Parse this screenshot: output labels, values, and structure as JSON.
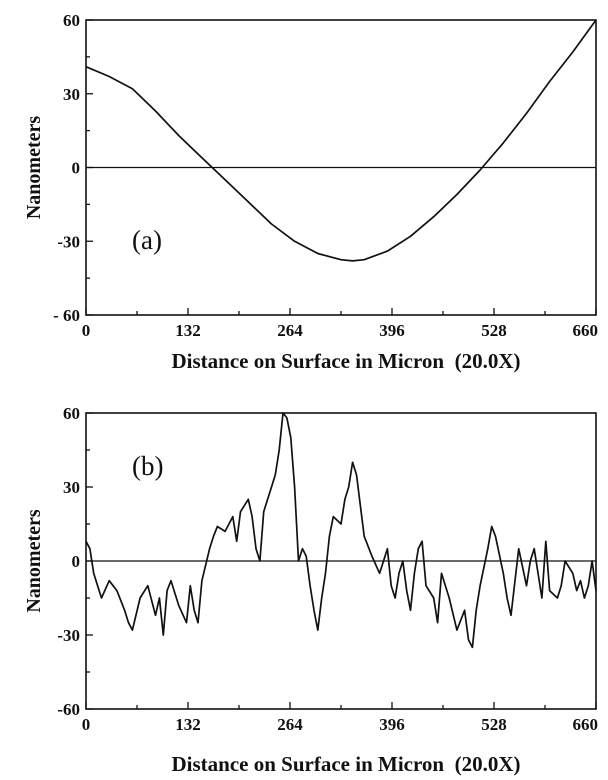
{
  "chart_data": [
    {
      "type": "line",
      "panel_label": "(a)",
      "xlabel": "Distance on Surface in Micron  (20.0X)",
      "ylabel": "Nanometers",
      "xlim": [
        0,
        660
      ],
      "ylim": [
        -60,
        60
      ],
      "x_ticks": [
        "0",
        "132",
        "264",
        "396",
        "528",
        "660"
      ],
      "y_ticks": [
        "60",
        "30",
        "0",
        "-30",
        "- 60"
      ],
      "zero_line": true,
      "series": [
        {
          "x": [
            0,
            30,
            60,
            90,
            120,
            150,
            180,
            210,
            240,
            270,
            300,
            330,
            345,
            360,
            390,
            420,
            450,
            480,
            510,
            540,
            570,
            600,
            630,
            660
          ],
          "values": [
            41,
            37,
            32,
            23,
            13,
            4,
            -5,
            -14,
            -23,
            -30,
            -35,
            -37.5,
            -38,
            -37.5,
            -34,
            -28,
            -20,
            -11,
            -1,
            10,
            22,
            35,
            47,
            60
          ]
        }
      ]
    },
    {
      "type": "line",
      "panel_label": "(b)",
      "xlabel": "Distance on Surface in Micron  (20.0X)",
      "ylabel": "Nanometers",
      "xlim": [
        0,
        660
      ],
      "ylim": [
        -60,
        60
      ],
      "x_ticks": [
        "0",
        "132",
        "264",
        "396",
        "528",
        "660"
      ],
      "y_ticks": [
        "60",
        "30",
        "0",
        "-30",
        "-60"
      ],
      "zero_line": true,
      "series": [
        {
          "x": [
            0,
            5,
            10,
            15,
            20,
            30,
            40,
            50,
            55,
            60,
            70,
            80,
            90,
            95,
            100,
            105,
            110,
            120,
            130,
            135,
            140,
            145,
            150,
            160,
            165,
            170,
            180,
            190,
            195,
            200,
            210,
            215,
            220,
            225,
            230,
            235,
            240,
            245,
            250,
            255,
            260,
            265,
            270,
            275,
            280,
            285,
            290,
            295,
            300,
            305,
            310,
            315,
            320,
            330,
            335,
            340,
            345,
            350,
            360,
            370,
            380,
            390,
            395,
            400,
            405,
            410,
            415,
            420,
            425,
            430,
            435,
            440,
            450,
            455,
            460,
            470,
            480,
            490,
            495,
            500,
            505,
            510,
            520,
            525,
            530,
            540,
            545,
            550,
            560,
            570,
            575,
            580,
            590,
            595,
            600,
            610,
            615,
            620,
            630,
            635,
            640,
            645,
            650,
            655,
            660
          ],
          "values": [
            8,
            5,
            -5,
            -10,
            -15,
            -8,
            -12,
            -20,
            -25,
            -28,
            -15,
            -10,
            -22,
            -15,
            -30,
            -12,
            -8,
            -18,
            -25,
            -10,
            -20,
            -25,
            -8,
            5,
            10,
            14,
            12,
            18,
            8,
            20,
            25,
            18,
            5,
            0,
            20,
            25,
            30,
            35,
            45,
            60,
            58,
            50,
            30,
            0,
            5,
            2,
            -10,
            -20,
            -28,
            -15,
            -5,
            10,
            18,
            15,
            25,
            30,
            40,
            35,
            10,
            2,
            -5,
            5,
            -10,
            -15,
            -5,
            0,
            -12,
            -20,
            -5,
            5,
            8,
            -10,
            -15,
            -25,
            -5,
            -15,
            -28,
            -20,
            -32,
            -35,
            -20,
            -10,
            5,
            14,
            10,
            -5,
            -15,
            -22,
            5,
            -10,
            0,
            5,
            -15,
            8,
            -12,
            -15,
            -10,
            0,
            -5,
            -12,
            -8,
            -15,
            -10,
            0,
            -12
          ]
        }
      ]
    }
  ]
}
